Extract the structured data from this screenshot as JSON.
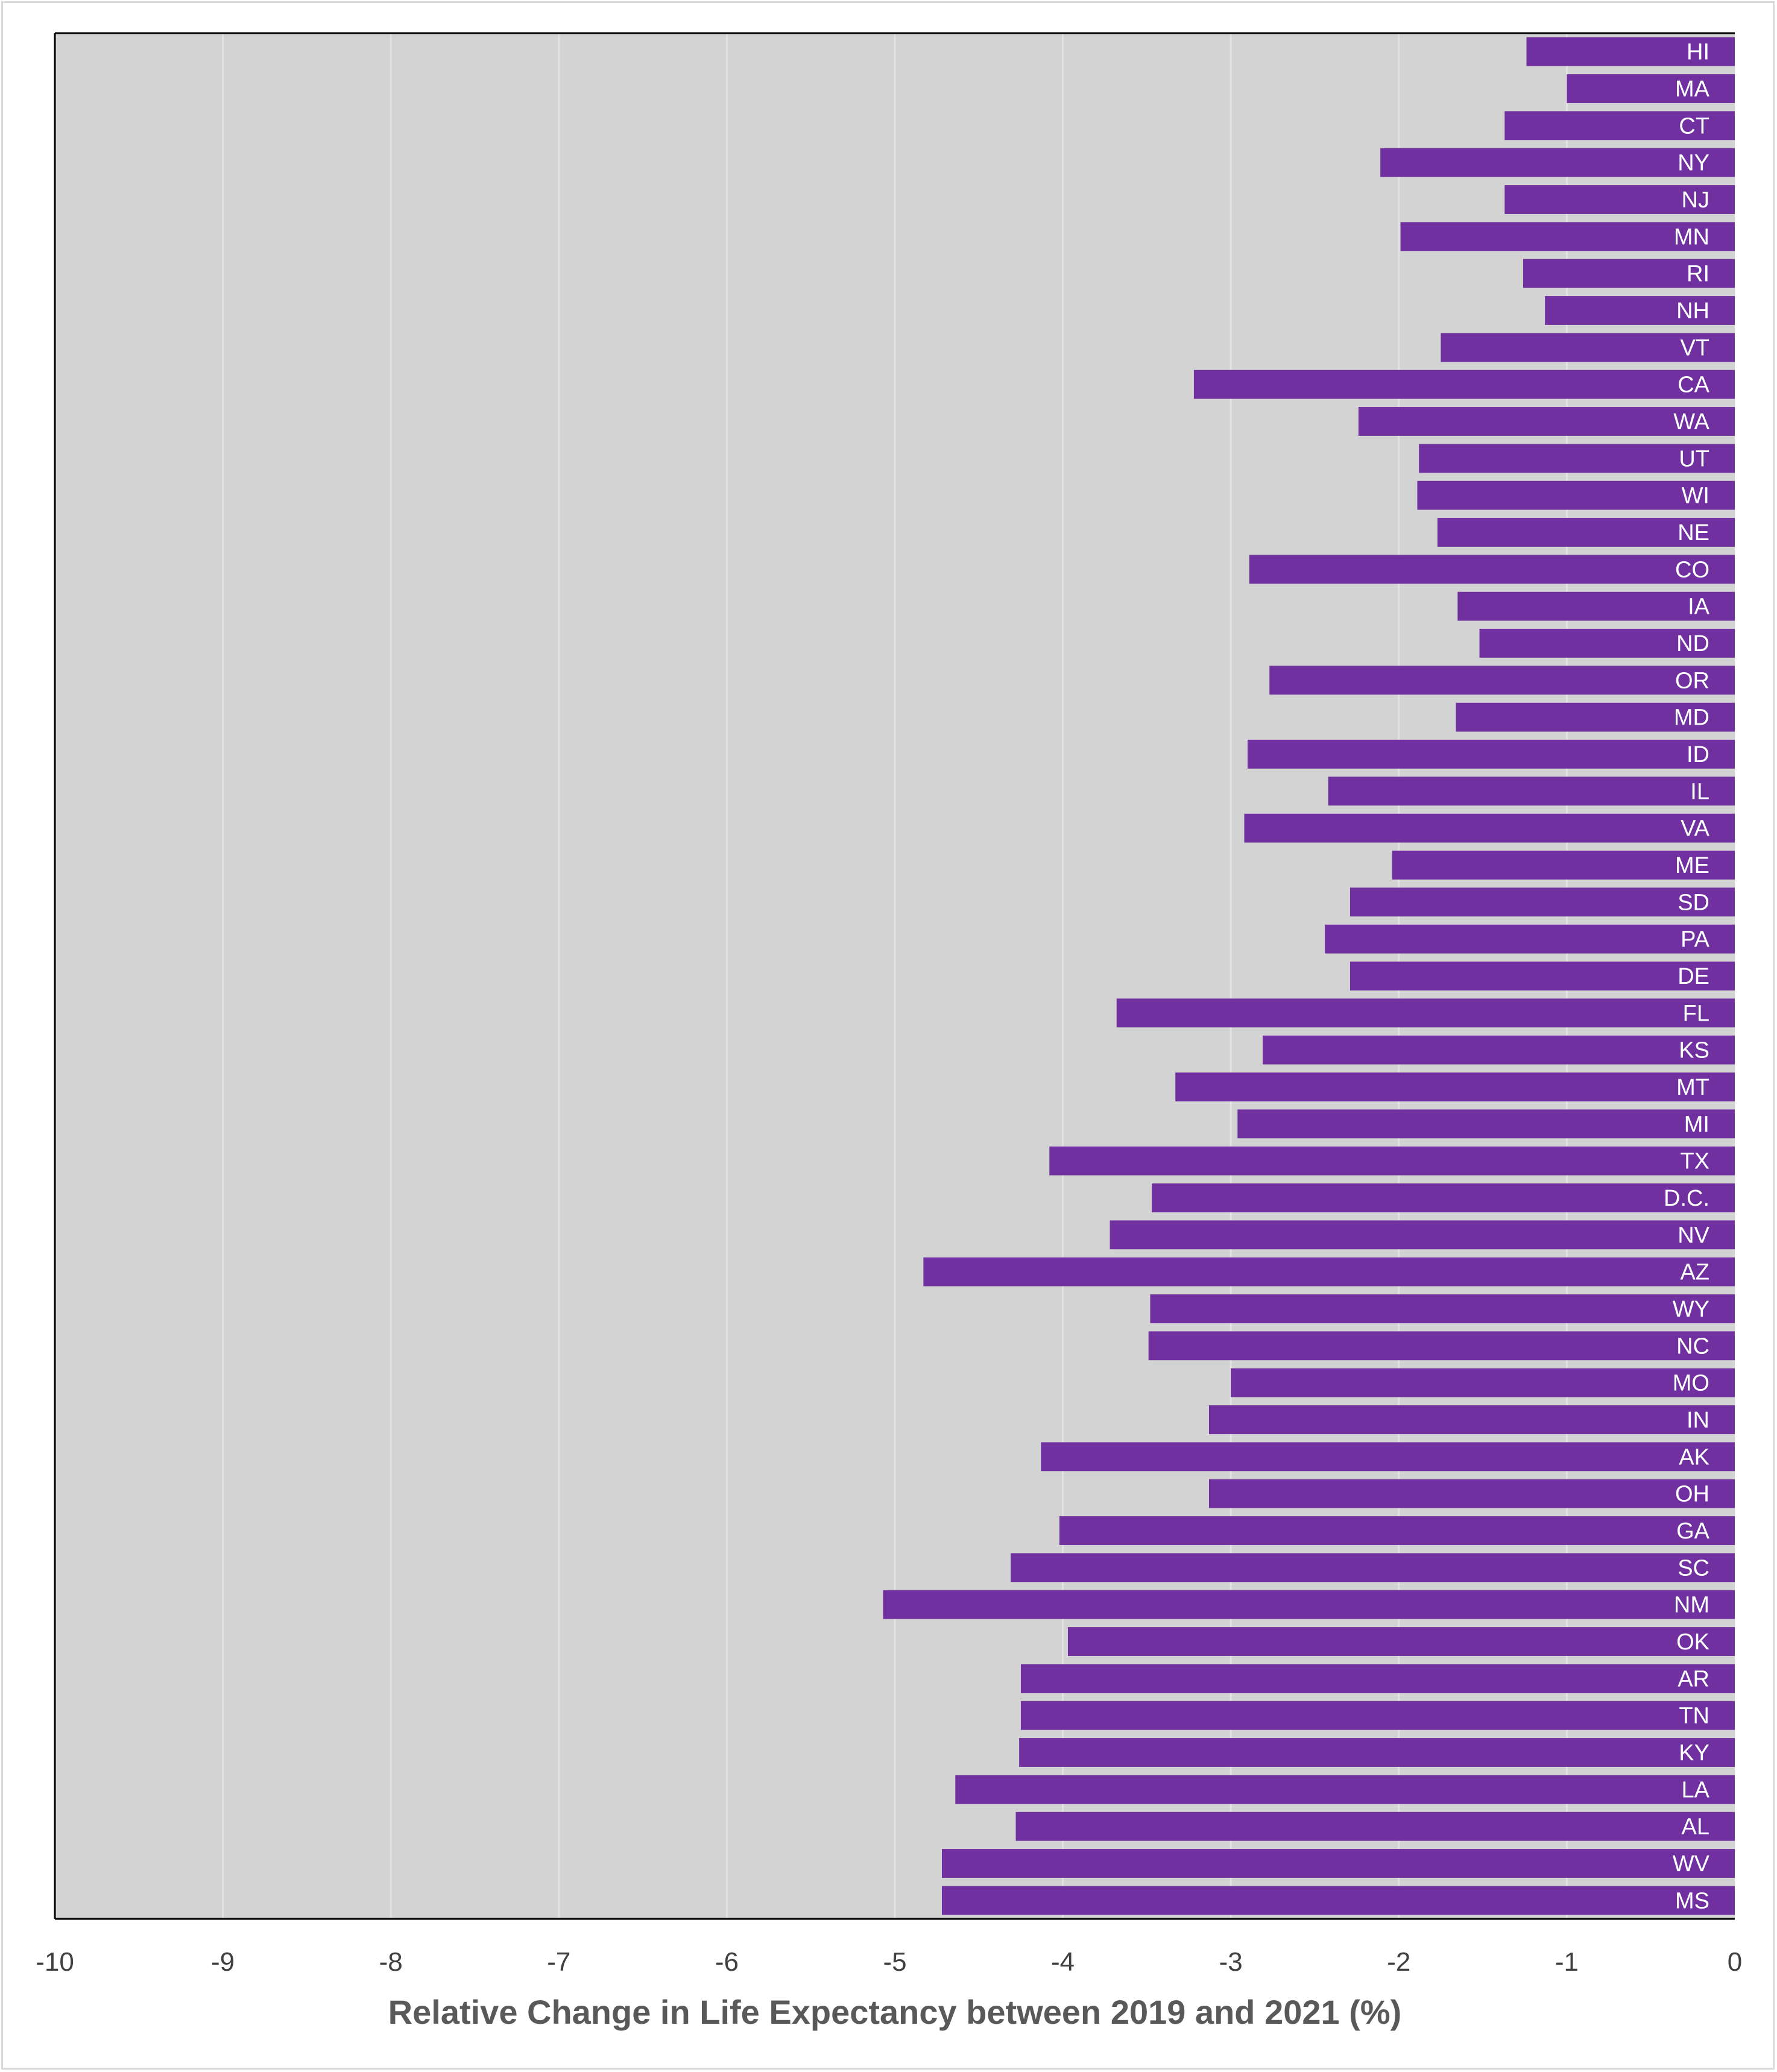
{
  "chart_data": {
    "type": "bar",
    "orientation": "horizontal",
    "xlabel": "Relative Change in Life Expectancy between 2019 and 2021 (%)",
    "ylabel": "",
    "xlim": [
      -10,
      0
    ],
    "x_ticks": [
      "-10",
      "-9",
      "-8",
      "-7",
      "-6",
      "-5",
      "-4",
      "-3",
      "-2",
      "-1",
      "0"
    ],
    "grid": "vertical",
    "colors": {
      "bar": "#7030A0",
      "plot_background": "#D3D3D3",
      "gridline": "#E2E2E2",
      "label": "#FFFFFF"
    },
    "categories": [
      "HI",
      "MA",
      "CT",
      "NY",
      "NJ",
      "MN",
      "RI",
      "NH",
      "VT",
      "CA",
      "WA",
      "UT",
      "WI",
      "NE",
      "CO",
      "IA",
      "ND",
      "OR",
      "MD",
      "ID",
      "IL",
      "VA",
      "ME",
      "SD",
      "PA",
      "DE",
      "FL",
      "KS",
      "MT",
      "MI",
      "TX",
      "D.C.",
      "NV",
      "AZ",
      "WY",
      "NC",
      "MO",
      "IN",
      "AK",
      "OH",
      "GA",
      "SC",
      "NM",
      "OK",
      "AR",
      "TN",
      "KY",
      "LA",
      "AL",
      "WV",
      "MS"
    ],
    "values": [
      -1.24,
      -1.0,
      -1.37,
      -2.11,
      -1.37,
      -1.99,
      -1.26,
      -1.13,
      -1.75,
      -3.22,
      -2.24,
      -1.88,
      -1.89,
      -1.77,
      -2.89,
      -1.65,
      -1.52,
      -2.77,
      -1.66,
      -2.9,
      -2.42,
      -2.92,
      -2.04,
      -2.29,
      -2.44,
      -2.29,
      -3.68,
      -2.81,
      -3.33,
      -2.96,
      -4.08,
      -3.47,
      -3.72,
      -4.83,
      -3.48,
      -3.49,
      -3.0,
      -3.13,
      -4.13,
      -3.13,
      -4.02,
      -4.31,
      -5.07,
      -3.97,
      -4.25,
      -4.25,
      -4.26,
      -4.64,
      -4.28,
      -4.72,
      -4.72
    ]
  }
}
